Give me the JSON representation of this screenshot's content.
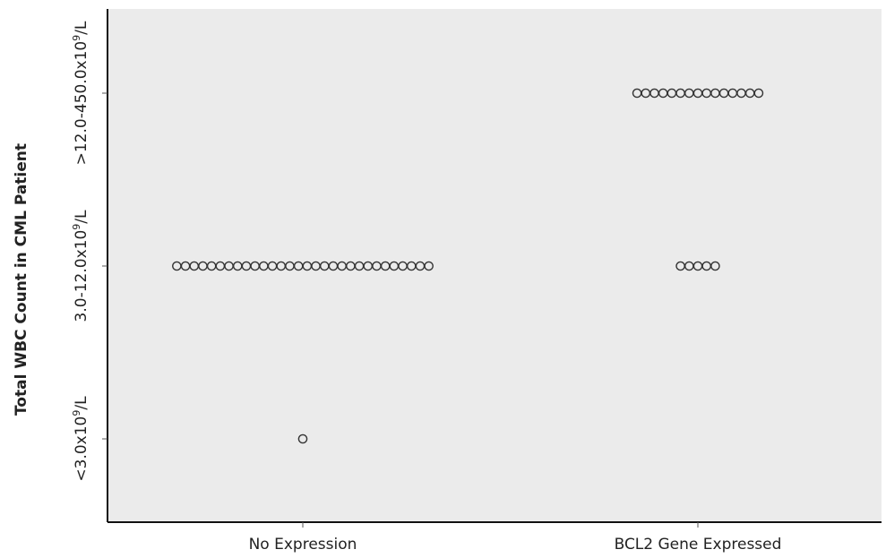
{
  "chart_data": {
    "type": "scatter",
    "title": "",
    "xlabel": "",
    "ylabel": "Total WBC Count in CML Patient",
    "categories": [
      "No Expression",
      "BCL2 Gene Expressed"
    ],
    "y_categories": [
      {
        "base": "<3.0x10",
        "exp": "9",
        "unit": "/L"
      },
      {
        "base": "3.0-12.0x10",
        "exp": "9",
        "unit": "/L"
      },
      {
        "base": ">12.0-450.0x10",
        "exp": "9",
        "unit": "/L"
      }
    ],
    "series": [
      {
        "counts": [
          [
            0,
            1
          ],
          [
            1,
            0
          ]
        ]
      },
      {
        "counts": [
          [
            0,
            30
          ],
          [
            1,
            5
          ]
        ]
      },
      {
        "counts": [
          [
            0,
            0
          ],
          [
            1,
            15
          ]
        ]
      }
    ],
    "grid": false,
    "background": "#ebebeb",
    "marker_color": "#333333",
    "marker": "hollow-circle"
  }
}
